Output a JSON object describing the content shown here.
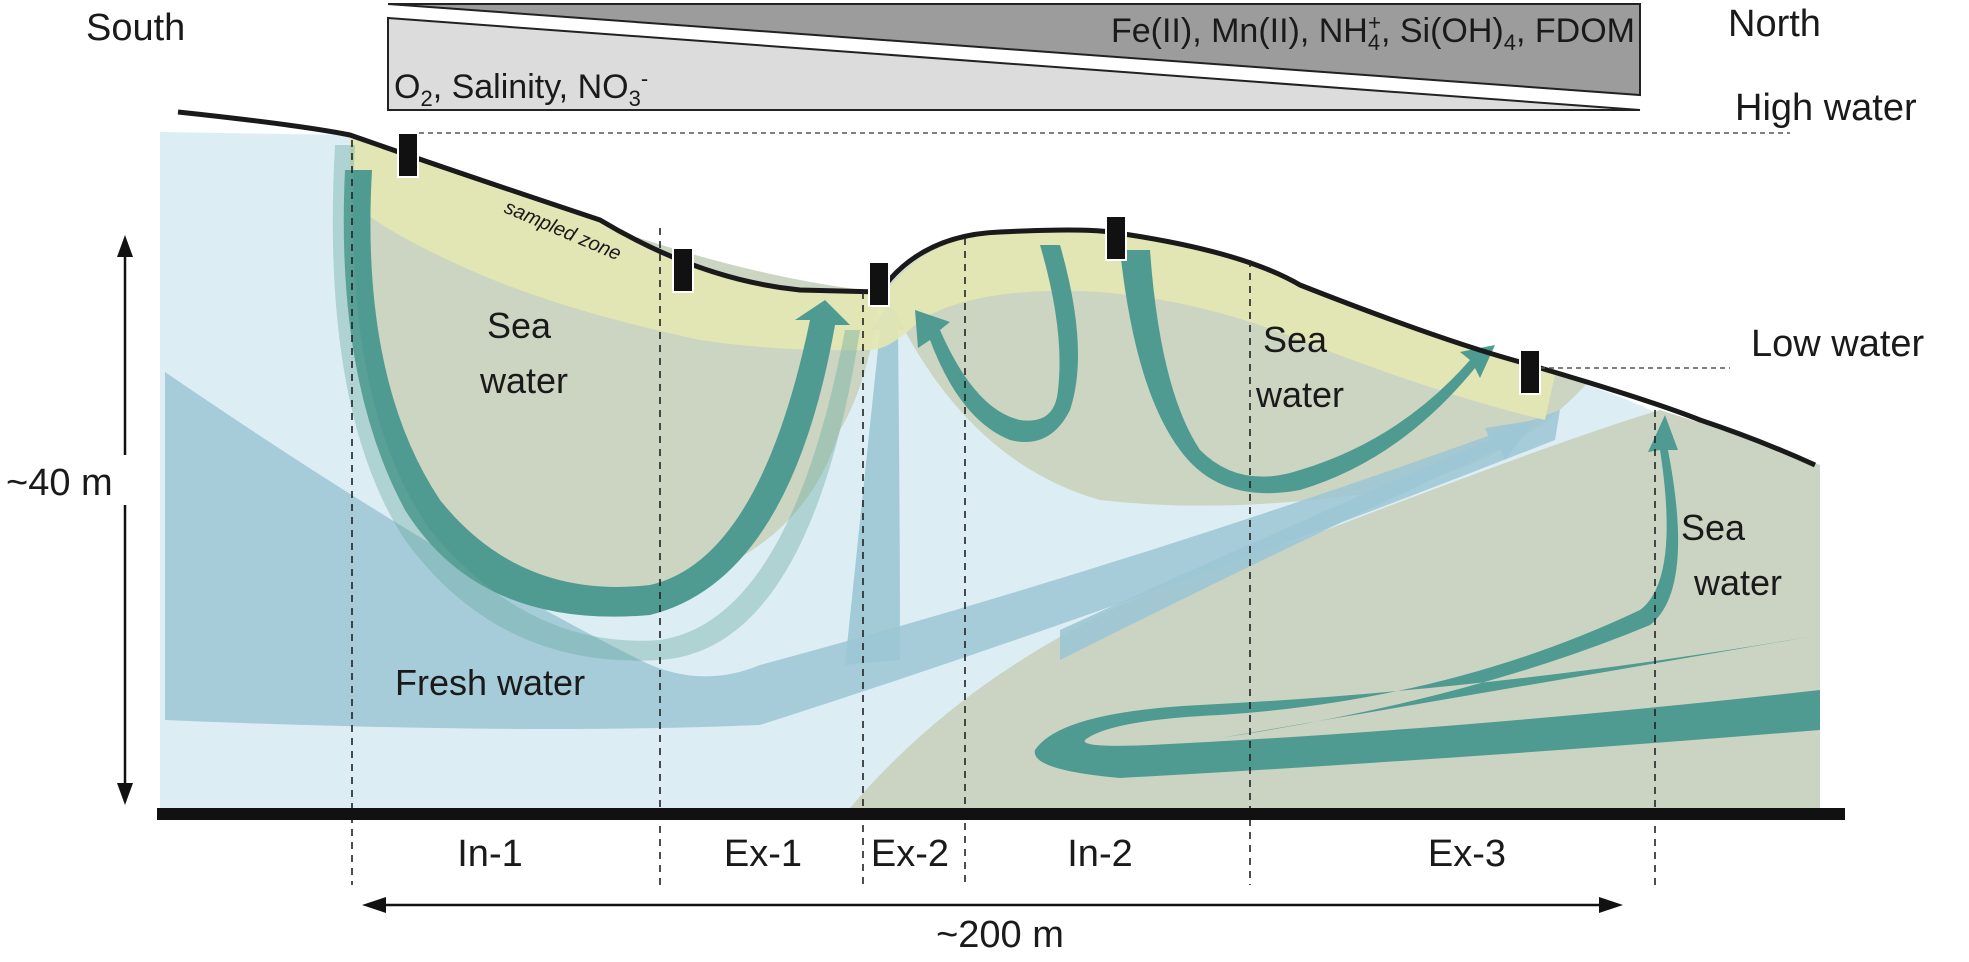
{
  "orientation": {
    "south": "South",
    "north": "North"
  },
  "gradient": {
    "top_label": "Fe(II), Mn(II), NH4+, Si(OH)4, FDOM",
    "top_label_parts": [
      "Fe(II), Mn(II), NH",
      "4",
      "+",
      ", Si(OH)",
      "4",
      ", FDOM"
    ],
    "bottom_label": "O2, Salinity, NO3-",
    "bottom_label_parts": [
      "O",
      "2",
      ", Salinity, NO",
      "3",
      "-"
    ]
  },
  "water_levels": {
    "high": "High water",
    "low": "Low water"
  },
  "scale": {
    "vertical": "~40 m",
    "horizontal": "~200 m"
  },
  "zones": [
    "In-1",
    "Ex-1",
    "Ex-2",
    "In-2",
    "Ex-3"
  ],
  "labels": {
    "sampled_zone": "sampled zone",
    "sea_water_1": [
      "Sea",
      "water"
    ],
    "sea_water_2": [
      "Sea",
      "water"
    ],
    "sea_water_3": [
      "Sea",
      "water"
    ],
    "fresh_water": "Fresh water"
  },
  "colors": {
    "sea_water_body": "#cbd4c2",
    "fresh_water_body": "#d9ecf3",
    "fresh_water_band": "#8fbfcf",
    "seawater_flow": "#4e9a91",
    "sampled_zone": "#e5e8b4",
    "gradient_light": "#dadada",
    "gradient_dark": "#9a9a9a",
    "sampler": "#111111"
  }
}
